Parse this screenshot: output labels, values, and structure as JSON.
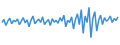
{
  "chart_data": {
    "type": "line",
    "color": "#3d8fd6",
    "tick_labels": false,
    "grid": false,
    "x": [
      1,
      2,
      3,
      4,
      5,
      6,
      7,
      8,
      9,
      10,
      11,
      12,
      13,
      14,
      15,
      16,
      17,
      18,
      19,
      20,
      21,
      22,
      23,
      24,
      25,
      26,
      27,
      28,
      29,
      30,
      31,
      32,
      33,
      34,
      35,
      36,
      37,
      38,
      39,
      40,
      41,
      42,
      43,
      44,
      45,
      46,
      47,
      48,
      49,
      50,
      51,
      52,
      53,
      54,
      55,
      56,
      57,
      58,
      59,
      60,
      61
    ],
    "values": [
      55,
      62,
      48,
      58,
      65,
      52,
      60,
      57,
      63,
      50,
      58,
      66,
      54,
      61,
      45,
      60,
      70,
      52,
      58,
      63,
      55,
      68,
      50,
      57,
      62,
      48,
      64,
      56,
      60,
      53,
      66,
      58,
      72,
      45,
      60,
      55,
      68,
      40,
      62,
      75,
      50,
      85,
      30,
      70,
      55,
      90,
      20,
      65,
      80,
      35,
      60,
      72,
      50,
      66,
      58,
      62,
      70,
      55,
      64,
      60,
      68
    ],
    "xlim": [
      1,
      61
    ],
    "ylim": [
      10,
      100
    ]
  }
}
